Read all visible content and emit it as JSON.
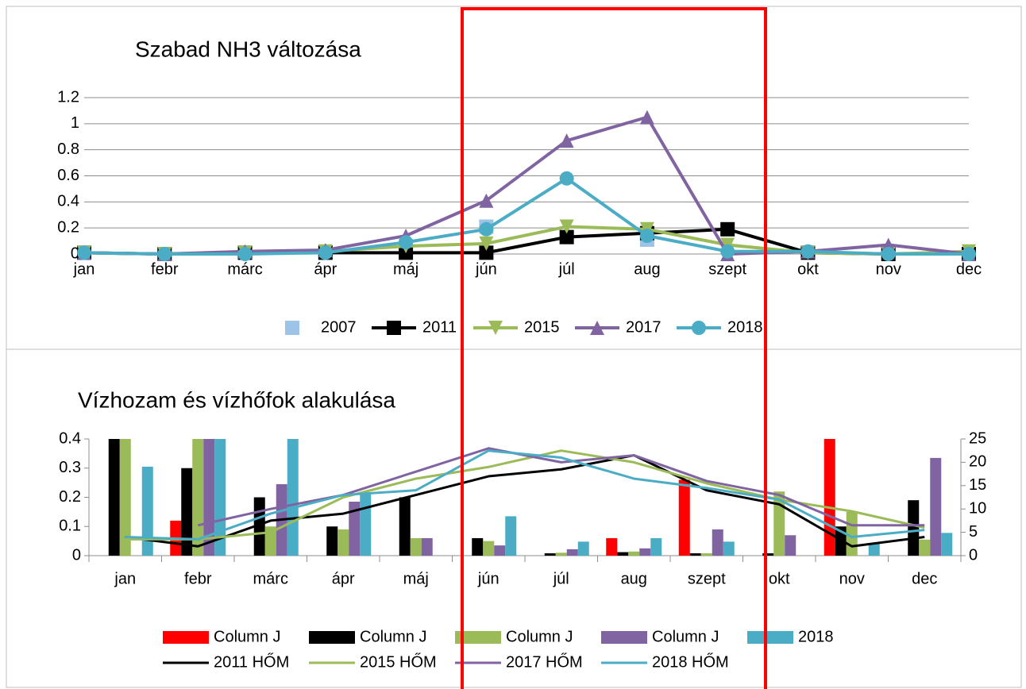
{
  "chart_data": [
    {
      "type": "line",
      "title": "Szabad NH3 változása",
      "categories": [
        "jan",
        "febr",
        "márc",
        "ápr",
        "máj",
        "jún",
        "júl",
        "aug",
        "szept",
        "okt",
        "nov",
        "dec"
      ],
      "ylim": [
        0,
        1.2
      ],
      "yticks": [
        0,
        0.2,
        0.4,
        0.6,
        0.8,
        1,
        1.2
      ],
      "grid": true,
      "series": [
        {
          "name": "2007",
          "color": "#9dc3e6",
          "marker": "square",
          "line": false,
          "values": [
            0.01,
            0,
            0.01,
            0.01,
            0.05,
            0.21,
            null,
            0.11,
            null,
            null,
            null,
            null
          ]
        },
        {
          "name": "2011",
          "color": "#000000",
          "marker": "square",
          "line": true,
          "values": [
            0.01,
            0,
            0.01,
            0.01,
            0.01,
            0.01,
            0.13,
            0.16,
            0.19,
            0.01,
            0,
            0
          ]
        },
        {
          "name": "2015",
          "color": "#9bbb59",
          "marker": "triangle-down",
          "line": true,
          "values": [
            0.01,
            0,
            0.01,
            0.02,
            0.06,
            0.08,
            0.21,
            0.19,
            0.07,
            0.01,
            0,
            0.02
          ]
        },
        {
          "name": "2017",
          "color": "#8064a2",
          "marker": "triangle",
          "line": true,
          "values": [
            0.01,
            0,
            0.02,
            0.03,
            0.14,
            0.41,
            0.87,
            1.05,
            0,
            0.02,
            0.07,
            0
          ]
        },
        {
          "name": "2018",
          "color": "#4bacc6",
          "marker": "circle",
          "line": true,
          "values": [
            0.01,
            0,
            0,
            0.01,
            0.09,
            0.19,
            0.58,
            0.14,
            0.02,
            0.02,
            0,
            0
          ]
        }
      ]
    },
    {
      "type": "bar",
      "title": "Vízhozam és vízhőfok alakulása",
      "categories": [
        "jan",
        "febr",
        "márc",
        "ápr",
        "máj",
        "jún",
        "júl",
        "aug",
        "szept",
        "okt",
        "nov",
        "dec"
      ],
      "ylim": [
        0,
        0.4
      ],
      "yticks": [
        0,
        0.1,
        0.2,
        0.3,
        0.4
      ],
      "y2lim": [
        0,
        25
      ],
      "y2ticks": [
        0,
        5,
        10,
        15,
        20,
        25
      ],
      "grid": false,
      "series": [
        {
          "name": "Column J",
          "color": "#ff0000",
          "values": [
            null,
            0.12,
            null,
            null,
            null,
            null,
            null,
            0.06,
            0.26,
            null,
            0.4,
            null
          ]
        },
        {
          "name": "Column J",
          "color": "#000000",
          "values": [
            0.4,
            0.3,
            0.2,
            0.1,
            0.2,
            0.06,
            0.008,
            0.012,
            0.008,
            0.008,
            0.1,
            0.19
          ]
        },
        {
          "name": "Column J",
          "color": "#9bbb59",
          "values": [
            0.4,
            0.4,
            0.1,
            0.09,
            0.06,
            0.05,
            0.01,
            0.014,
            0.008,
            0.22,
            0.15,
            0.055
          ]
        },
        {
          "name": "Column J",
          "color": "#8064a2",
          "values": [
            null,
            0.4,
            0.245,
            0.185,
            0.06,
            0.035,
            0.022,
            0.025,
            0.09,
            0.07,
            null,
            0.335
          ]
        },
        {
          "name": "2018",
          "color": "#4bacc6",
          "values": [
            0.305,
            0.4,
            0.4,
            0.21,
            null,
            0.135,
            0.048,
            0.06,
            0.048,
            null,
            0.04,
            0.078
          ]
        },
        {
          "name": "2011 HŐM",
          "color": "#000000",
          "type": "line",
          "axis": "y2",
          "values": [
            4,
            2,
            7.5,
            9,
            13,
            17,
            18.5,
            21.5,
            14,
            11,
            2,
            4
          ]
        },
        {
          "name": "2015 HŐM",
          "color": "#9bbb59",
          "type": "line",
          "axis": "y2",
          "values": [
            3.5,
            3.5,
            5,
            12.5,
            16.5,
            19,
            22.5,
            20,
            15.5,
            12,
            9.5,
            6
          ]
        },
        {
          "name": "2017 HŐM",
          "color": "#8064a2",
          "type": "line",
          "axis": "y2",
          "values": [
            null,
            6.5,
            10,
            13,
            18,
            23,
            20,
            21.5,
            16,
            13,
            6.5,
            6.5
          ]
        },
        {
          "name": "2018 HŐM",
          "color": "#4bacc6",
          "type": "line",
          "axis": "y2",
          "values": [
            4,
            3.5,
            9,
            13,
            14,
            22.5,
            21,
            16.5,
            14.5,
            12,
            4,
            5.5
          ]
        }
      ]
    }
  ]
}
